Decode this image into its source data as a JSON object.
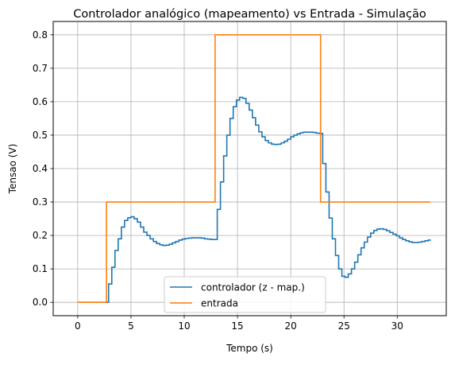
{
  "chart_data": {
    "type": "line",
    "title": "Controlador analógico (mapeamento) vs Entrada - Simulação",
    "xlabel": "Tempo (s)",
    "ylabel": "Tensao (V)",
    "xlim": [
      -2.3,
      34.6
    ],
    "ylim": [
      -0.04,
      0.84
    ],
    "xticks": [
      0,
      5,
      10,
      15,
      20,
      25,
      30
    ],
    "yticks": [
      0.0,
      0.1,
      0.2,
      0.3,
      0.4,
      0.5,
      0.6,
      0.7,
      0.8
    ],
    "xtick_labels": [
      "0",
      "5",
      "10",
      "15",
      "20",
      "25",
      "30"
    ],
    "ytick_labels": [
      "0.0",
      "0.1",
      "0.2",
      "0.3",
      "0.4",
      "0.5",
      "0.6",
      "0.7",
      "0.8"
    ],
    "grid": true,
    "legend_position": "lower-center",
    "step": true,
    "series": [
      {
        "name": "controlador (z - map.)",
        "color": "#1f77b4",
        "x": [
          0,
          2.6,
          2.9,
          3.2,
          3.5,
          3.8,
          4.1,
          4.4,
          4.7,
          5.0,
          5.3,
          5.6,
          5.9,
          6.2,
          6.5,
          6.8,
          7.1,
          7.4,
          7.7,
          8.0,
          8.3,
          8.6,
          8.9,
          9.2,
          9.5,
          9.8,
          10.1,
          10.4,
          10.7,
          11.0,
          11.3,
          11.6,
          11.9,
          12.2,
          12.5,
          12.8,
          13.1,
          13.4,
          13.7,
          14.0,
          14.3,
          14.6,
          14.9,
          15.2,
          15.5,
          15.8,
          16.1,
          16.4,
          16.7,
          17.0,
          17.3,
          17.6,
          17.9,
          18.2,
          18.5,
          18.8,
          19.1,
          19.4,
          19.7,
          20.0,
          20.3,
          20.6,
          20.9,
          21.2,
          21.5,
          21.8,
          22.1,
          22.4,
          22.7,
          23.0,
          23.3,
          23.6,
          23.9,
          24.2,
          24.5,
          24.8,
          25.1,
          25.4,
          25.7,
          26.0,
          26.3,
          26.6,
          26.9,
          27.2,
          27.5,
          27.8,
          28.1,
          28.4,
          28.7,
          29.0,
          29.3,
          29.6,
          29.9,
          30.2,
          30.5,
          30.8,
          31.1,
          31.4,
          31.7,
          32.0,
          32.3,
          32.6,
          32.9,
          33.1
        ],
        "y": [
          0,
          0.0,
          0.055,
          0.105,
          0.155,
          0.19,
          0.225,
          0.245,
          0.253,
          0.256,
          0.25,
          0.24,
          0.225,
          0.21,
          0.2,
          0.19,
          0.182,
          0.176,
          0.172,
          0.17,
          0.171,
          0.174,
          0.178,
          0.182,
          0.186,
          0.189,
          0.191,
          0.192,
          0.193,
          0.193,
          0.193,
          0.192,
          0.19,
          0.189,
          0.188,
          0.188,
          0.278,
          0.36,
          0.438,
          0.5,
          0.55,
          0.585,
          0.605,
          0.613,
          0.61,
          0.595,
          0.575,
          0.552,
          0.53,
          0.51,
          0.495,
          0.484,
          0.477,
          0.473,
          0.472,
          0.473,
          0.477,
          0.482,
          0.488,
          0.495,
          0.5,
          0.504,
          0.507,
          0.509,
          0.509,
          0.509,
          0.508,
          0.506,
          0.505,
          0.415,
          0.33,
          0.252,
          0.19,
          0.14,
          0.1,
          0.078,
          0.075,
          0.085,
          0.1,
          0.12,
          0.142,
          0.163,
          0.18,
          0.195,
          0.207,
          0.215,
          0.219,
          0.22,
          0.218,
          0.214,
          0.209,
          0.204,
          0.199,
          0.193,
          0.188,
          0.184,
          0.181,
          0.179,
          0.179,
          0.18,
          0.182,
          0.184,
          0.186,
          0.188
        ]
      },
      {
        "name": "entrada",
        "color": "#ff7f0e",
        "x": [
          0,
          2.7,
          12.9,
          22.8,
          33.1
        ],
        "y": [
          0,
          0.3,
          0.8,
          0.3,
          0.3
        ]
      }
    ]
  }
}
